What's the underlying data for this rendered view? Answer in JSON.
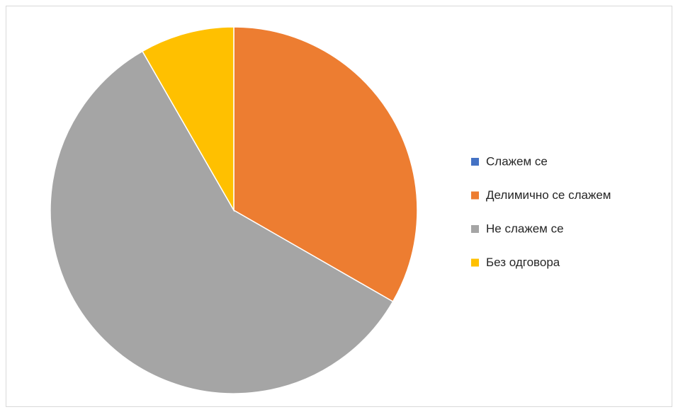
{
  "chart_data": {
    "type": "pie",
    "categories": [
      "Слажем се",
      "Делимично се слажем",
      "Не слажем се",
      "Без одговора"
    ],
    "values": [
      0,
      33.3,
      58.4,
      8.3
    ],
    "colors": [
      "#4472c4",
      "#ed7d31",
      "#a5a5a5",
      "#ffc000"
    ],
    "legend": "right"
  }
}
